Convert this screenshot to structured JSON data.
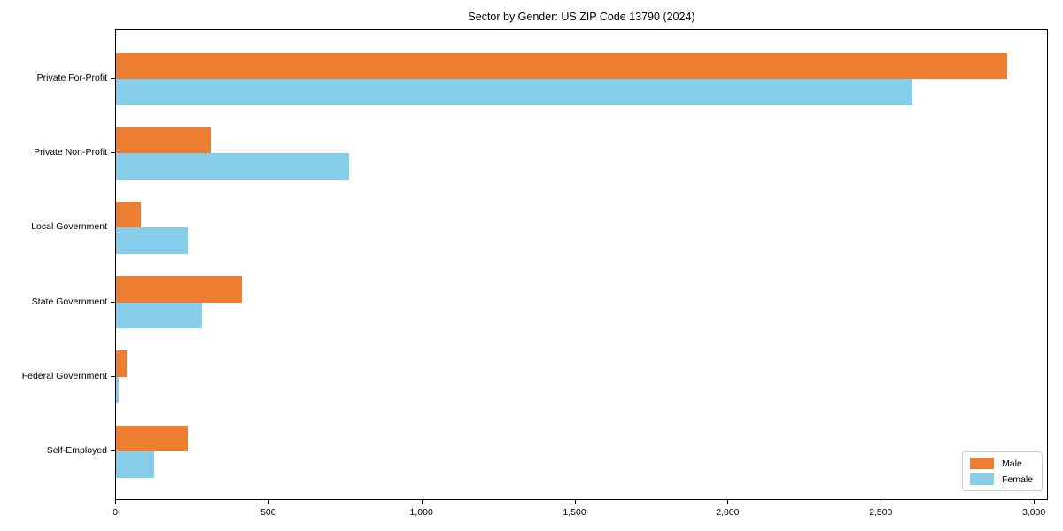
{
  "title": "Sector by Gender: US ZIP Code 13790 (2024)",
  "chart_data": {
    "type": "bar",
    "orientation": "horizontal",
    "title": "Sector by Gender: US ZIP Code 13790 (2024)",
    "categories": [
      "Private For-Profit",
      "Private Non-Profit",
      "Local Government",
      "State Government",
      "Federal Government",
      "Self-Employed"
    ],
    "series": [
      {
        "name": "Male",
        "color": "#ed7d31",
        "values": [
          2910,
          310,
          80,
          410,
          35,
          235
        ]
      },
      {
        "name": "Female",
        "color": "#87ceeb",
        "values": [
          2600,
          760,
          235,
          280,
          10,
          125
        ]
      }
    ],
    "xlabel": "",
    "ylabel": "",
    "xlim": [
      0,
      3046
    ],
    "x_ticks": [
      0,
      500,
      1000,
      1500,
      2000,
      2500,
      3000
    ],
    "x_tick_labels": [
      "0",
      "500",
      "1,000",
      "1,500",
      "2,000",
      "2,500",
      "3,000"
    ],
    "grid": false,
    "legend": {
      "position": "lower right",
      "labels": [
        "Male",
        "Female"
      ]
    }
  }
}
